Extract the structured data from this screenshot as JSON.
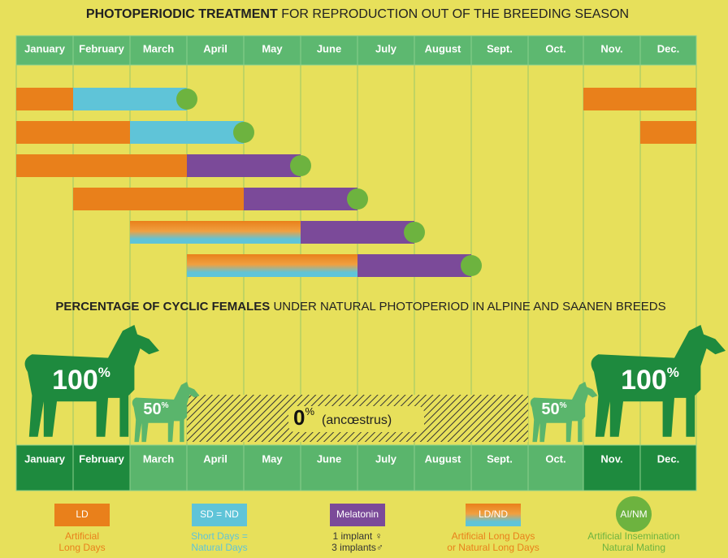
{
  "header": {
    "title_bold": "PHOTOPERIODIC TREATMENT",
    "title_rest": " FOR REPRODUCTION OUT OF THE BREEDING SEASON"
  },
  "months_top": [
    "January",
    "February",
    "March",
    "April",
    "May",
    "June",
    "July",
    "August",
    "Sept.",
    "Oct.",
    "Nov.",
    "Dec."
  ],
  "section2": {
    "title_bold": "PERCENTAGE OF CYCLIC FEMALES",
    "title_rest": " UNDER NATURAL PHOTOPERIOD IN ALPINE AND SAANEN BREEDS"
  },
  "percentages": [
    {
      "value": "100",
      "unit": "%"
    },
    {
      "value": "50",
      "unit": "%"
    },
    {
      "value": "0",
      "unit": "%",
      "note": "(ancœstrus)"
    },
    {
      "value": "50",
      "unit": "%"
    },
    {
      "value": "100",
      "unit": "%"
    }
  ],
  "months_bottom": [
    "January",
    "February",
    "March",
    "April",
    "May",
    "June",
    "July",
    "August",
    "Sept.",
    "Oct.",
    "Nov.",
    "Dec."
  ],
  "legend": [
    {
      "box": "LD",
      "caption": [
        "Artificial",
        "Long Days"
      ]
    },
    {
      "box": "SD = ND",
      "caption": [
        "Short Days =",
        "Natural Days"
      ]
    },
    {
      "box": "Melatonin",
      "caption": [
        "1 implant ♀",
        "3 implants♂"
      ]
    },
    {
      "box": "LD/ND",
      "caption": [
        "Artificial Long Days",
        "or Natural Long Days"
      ]
    },
    {
      "box": "AI/NM",
      "caption": [
        "Artificial Insemination",
        "Natural Mating"
      ]
    }
  ]
}
